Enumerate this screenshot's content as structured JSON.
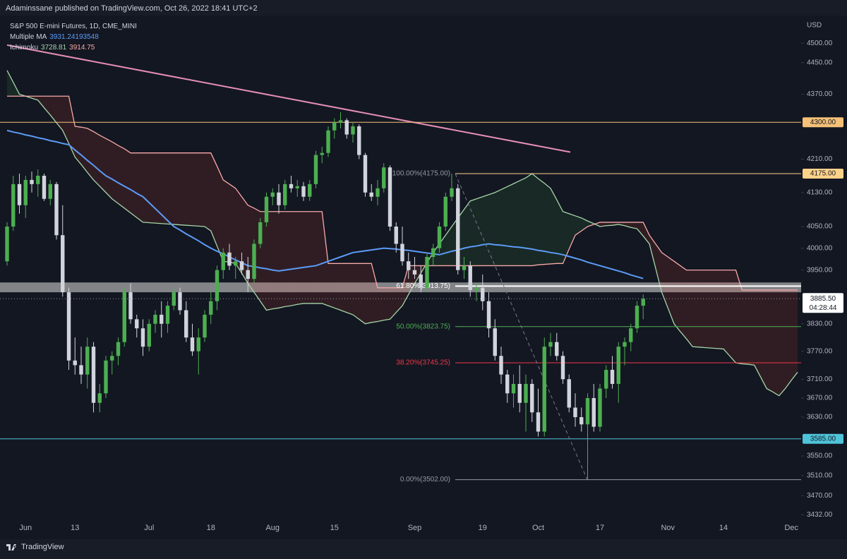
{
  "header": {
    "publisher": "Adaminssane published on TradingView.com, Oct 26, 2022 18:41 UTC+2"
  },
  "footer": {
    "brand": "TradingView"
  },
  "chart_data": {
    "type": "candlestick",
    "title": "S&P 500 E-mini Futures, 1D, CME_MINI",
    "currency": "USD",
    "log": true,
    "grid": false,
    "up_color": "#4caf50",
    "down_color": "#d1d4dc",
    "ylim": [
      3420,
      4572
    ],
    "yticks": [
      {
        "value": 4500,
        "label": "4500.00"
      },
      {
        "value": 4450,
        "label": "4450.00"
      },
      {
        "value": 4370,
        "label": "4370.00"
      },
      {
        "value": 4210,
        "label": "4210.00"
      },
      {
        "value": 4130,
        "label": "4130.00"
      },
      {
        "value": 4050,
        "label": "4050.00"
      },
      {
        "value": 4000,
        "label": "4000.00"
      },
      {
        "value": 3950,
        "label": "3950.00"
      },
      {
        "value": 3830,
        "label": "3830.00"
      },
      {
        "value": 3770,
        "label": "3770.00"
      },
      {
        "value": 3710,
        "label": "3710.00"
      },
      {
        "value": 3670,
        "label": "3670.00"
      },
      {
        "value": 3630,
        "label": "3630.00"
      },
      {
        "value": 3550,
        "label": "3550.00"
      },
      {
        "value": 3510,
        "label": "3510.00"
      },
      {
        "value": 3470,
        "label": "3470.00"
      },
      {
        "value": 3432,
        "label": "3432.00"
      }
    ],
    "categories": [
      null,
      null,
      null,
      "Jun",
      null,
      null,
      null,
      null,
      null,
      null,
      null,
      "13",
      null,
      null,
      null,
      null,
      null,
      null,
      null,
      null,
      null,
      null,
      null,
      "Jul",
      null,
      null,
      null,
      null,
      null,
      null,
      null,
      null,
      null,
      "18",
      null,
      null,
      null,
      null,
      null,
      null,
      null,
      null,
      null,
      "Aug",
      null,
      null,
      null,
      null,
      null,
      null,
      null,
      null,
      null,
      "15",
      null,
      null,
      null,
      null,
      null,
      null,
      null,
      null,
      null,
      null,
      null,
      null,
      "Sep",
      null,
      null,
      null,
      null,
      null,
      null,
      null,
      null,
      null,
      null,
      "19",
      null,
      null,
      null,
      null,
      null,
      null,
      null,
      null,
      "Oct",
      null,
      null,
      null,
      null,
      null,
      null,
      null,
      null,
      null,
      "17",
      null,
      null,
      null,
      null,
      null,
      null,
      null,
      null,
      null,
      null,
      "Nov",
      null,
      null,
      null,
      null,
      null,
      null,
      null,
      null,
      "14",
      null,
      null,
      null,
      null,
      null,
      null,
      null,
      null,
      null,
      null,
      "Dec",
      null
    ],
    "open": [
      3970,
      4050,
      4150,
      4100,
      4160,
      4150,
      4170,
      4115,
      4150,
      4030,
      3900,
      3750,
      3740,
      3720,
      3780,
      3660,
      3680,
      3750,
      3760,
      3790,
      3900,
      3840,
      3820,
      3780,
      3830,
      3850,
      3830,
      3870,
      3900,
      3860,
      3800,
      3770,
      3800,
      3850,
      3880,
      3950,
      3990,
      3960,
      3970,
      3950,
      3930,
      4010,
      4060,
      4120,
      4130,
      4100,
      4150,
      4140,
      4145,
      4120,
      4150,
      4220,
      4225,
      4280,
      4300,
      4305,
      4270,
      4290,
      4220,
      4130,
      4120,
      4140,
      4190,
      4050,
      4010,
      3970,
      3950,
      3940,
      3910,
      3980,
      4000,
      4050,
      4120,
      4140,
      3950,
      3960,
      3905,
      3910,
      3880,
      3820,
      3760,
      3720,
      3680,
      3700,
      3660,
      3700,
      3640,
      3600,
      3780,
      3790,
      3760,
      3710,
      3650,
      3630,
      3615,
      3670,
      3610,
      3690,
      3730,
      3700,
      3780,
      3790,
      3820,
      3870,
      null,
      null,
      null,
      null,
      null,
      null,
      null,
      null,
      null,
      null,
      null,
      null,
      null,
      null,
      null,
      null,
      null,
      null,
      null,
      null,
      null,
      null,
      null,
      null,
      null
    ],
    "high": [
      4060,
      4170,
      4175,
      4170,
      4180,
      4185,
      4175,
      4160,
      4155,
      4100,
      3910,
      3800,
      3780,
      3800,
      3790,
      3700,
      3760,
      3770,
      3800,
      3910,
      3920,
      3850,
      3840,
      3840,
      3860,
      3880,
      3880,
      3910,
      3910,
      3880,
      3830,
      3820,
      3860,
      3900,
      3960,
      4000,
      4010,
      3980,
      3990,
      3980,
      4020,
      4070,
      4130,
      4140,
      4150,
      4160,
      4170,
      4160,
      4155,
      4160,
      4230,
      4240,
      4290,
      4310,
      4325,
      4310,
      4300,
      4295,
      4225,
      4150,
      4160,
      4200,
      4195,
      4060,
      4050,
      3990,
      3980,
      3960,
      3990,
      4010,
      4060,
      4130,
      4175,
      4150,
      3980,
      3970,
      3920,
      3940,
      3900,
      3840,
      3780,
      3730,
      3720,
      3740,
      3720,
      3710,
      3690,
      3800,
      3810,
      3810,
      3770,
      3720,
      3680,
      3650,
      3680,
      3700,
      3700,
      3740,
      3760,
      3790,
      3800,
      3830,
      3880,
      3895,
      null,
      null,
      null,
      null,
      null,
      null,
      null,
      null,
      null,
      null,
      null,
      null,
      null,
      null,
      null,
      null,
      null,
      null,
      null,
      null,
      null,
      null,
      null,
      null,
      null
    ],
    "low": [
      3960,
      4040,
      4080,
      4070,
      4130,
      4120,
      4110,
      4100,
      4020,
      3890,
      3730,
      3720,
      3700,
      3690,
      3640,
      3640,
      3670,
      3720,
      3740,
      3780,
      3830,
      3800,
      3760,
      3770,
      3810,
      3800,
      3810,
      3860,
      3850,
      3790,
      3760,
      3720,
      3790,
      3830,
      3860,
      3930,
      3950,
      3930,
      3940,
      3900,
      3920,
      4000,
      4050,
      4100,
      4080,
      4090,
      4130,
      4120,
      4110,
      4110,
      4140,
      4200,
      4215,
      4260,
      4285,
      4260,
      4250,
      4210,
      4120,
      4110,
      4100,
      4130,
      4040,
      3990,
      3960,
      3930,
      3930,
      3900,
      3900,
      3960,
      3990,
      4040,
      4110,
      3940,
      3930,
      3890,
      3880,
      3860,
      3800,
      3750,
      3700,
      3660,
      3650,
      3640,
      3600,
      3620,
      3590,
      3590,
      3760,
      3750,
      3700,
      3640,
      3610,
      3600,
      3502,
      3600,
      3600,
      3670,
      3690,
      3660,
      3740,
      3770,
      3810,
      3840,
      null,
      null,
      null,
      null,
      null,
      null,
      null,
      null,
      null,
      null,
      null,
      null,
      null,
      null,
      null,
      null,
      null,
      null,
      null,
      null,
      null,
      null,
      null,
      null,
      null
    ],
    "close": [
      4050,
      4150,
      4100,
      4160,
      4150,
      4170,
      4115,
      4150,
      4030,
      3900,
      3750,
      3740,
      3720,
      3780,
      3660,
      3680,
      3750,
      3760,
      3790,
      3900,
      3840,
      3820,
      3780,
      3830,
      3850,
      3830,
      3870,
      3900,
      3860,
      3800,
      3770,
      3800,
      3850,
      3880,
      3950,
      3990,
      3960,
      3970,
      3950,
      3930,
      4010,
      4060,
      4120,
      4130,
      4100,
      4150,
      4140,
      4145,
      4120,
      4150,
      4220,
      4225,
      4280,
      4300,
      4305,
      4270,
      4290,
      4220,
      4130,
      4120,
      4140,
      4190,
      4050,
      4010,
      3970,
      3950,
      3940,
      3910,
      3980,
      4000,
      4050,
      4120,
      4140,
      3950,
      3960,
      3905,
      3910,
      3880,
      3820,
      3760,
      3720,
      3680,
      3700,
      3660,
      3700,
      3640,
      3600,
      3780,
      3790,
      3760,
      3710,
      3650,
      3630,
      3615,
      3670,
      3610,
      3690,
      3730,
      3700,
      3780,
      3790,
      3820,
      3870,
      3885.5,
      null,
      null,
      null,
      null,
      null,
      null,
      null,
      null,
      null,
      null,
      null,
      null,
      null,
      null,
      null,
      null,
      null,
      null,
      null,
      null,
      null,
      null,
      null,
      null,
      null
    ],
    "ma": {
      "name": "Multiple MA",
      "last": 3931.24193548,
      "color": "#5b9cf6",
      "values": [
        4280,
        4276,
        4273,
        4269,
        4266,
        4262,
        4259,
        4255,
        4252,
        4248,
        4245,
        4232,
        4220,
        4207,
        4195,
        4182,
        4170,
        4162,
        4153,
        4145,
        4137,
        4128,
        4120,
        4106,
        4092,
        4078,
        4064,
        4050,
        4042,
        4033,
        4025,
        4017,
        4008,
        4000,
        3993,
        3987,
        3980,
        3973,
        3967,
        3960,
        3958,
        3955,
        3953,
        3950,
        3948,
        3950,
        3952,
        3954,
        3956,
        3958,
        3960,
        3965,
        3970,
        3975,
        3980,
        3985,
        3990,
        3992,
        3994,
        3996,
        3998,
        4000,
        3999,
        3998,
        3996,
        3995,
        3993,
        3991,
        3989,
        3987,
        3985,
        3989,
        3993,
        3996,
        4000,
        4003,
        4005,
        4008,
        4010,
        4008,
        4007,
        4005,
        4003,
        4002,
        4000,
        3998,
        3995,
        3993,
        3990,
        3988,
        3985,
        3981,
        3977,
        3973,
        3968,
        3964,
        3960,
        3956,
        3952,
        3948,
        3944,
        3939,
        3935,
        3931,
        null,
        null,
        null,
        null,
        null,
        null,
        null,
        null,
        null,
        null,
        null,
        null,
        null,
        null,
        null,
        null,
        null,
        null,
        null,
        null,
        null,
        null,
        null,
        null,
        null
      ]
    },
    "ichimoku": {
      "name": "Ichimoku",
      "cloud_up_color": "rgba(67,160,71,0.13)",
      "cloud_down_color": "rgba(244,67,54,0.13)",
      "lead1": {
        "last": 3728.81,
        "color": "#a5d6a7",
        "values": [
          4430,
          4400,
          4370,
          4365,
          4360,
          4355,
          4336,
          4318,
          4299,
          4280,
          4248,
          4215,
          4197,
          4178,
          4160,
          4145,
          4130,
          4115,
          4104,
          4093,
          4082,
          4071,
          4060,
          4059,
          4058,
          4057,
          4056,
          4055,
          4054,
          4053,
          4052,
          4051,
          4050,
          4040,
          4005,
          3970,
          3968,
          3965,
          3943,
          3920,
          3900,
          3880,
          3860,
          3863,
          3865,
          3868,
          3870,
          3873,
          3875,
          3875,
          3875,
          3875,
          3870,
          3865,
          3860,
          3855,
          3850,
          3840,
          3830,
          3833,
          3835,
          3838,
          3840,
          3855,
          3870,
          3895,
          3920,
          3943,
          3967,
          3990,
          4010,
          4030,
          4050,
          4070,
          4090,
          4110,
          4115,
          4120,
          4125,
          4130,
          4137,
          4144,
          4151,
          4158,
          4165,
          4175,
          4163,
          4152,
          4140,
          4113,
          4085,
          4080,
          4075,
          4070,
          4063,
          4057,
          4050,
          4052,
          4053,
          4055,
          4052,
          4048,
          4045,
          4028,
          4010,
          3955,
          3900,
          3865,
          3830,
          3813,
          3797,
          3780,
          3779,
          3778,
          3777,
          3776,
          3775,
          3760,
          3745,
          3743,
          3742,
          3740,
          3715,
          3690,
          3683,
          3675,
          3690,
          3708,
          3725
        ]
      },
      "lead2": {
        "last": 3914.75,
        "color": "#f7a9a7",
        "values": [
          4365,
          4365,
          4365,
          4365,
          4365,
          4365,
          4365,
          4365,
          4365,
          4365,
          4365,
          4290,
          4288,
          4285,
          4277,
          4268,
          4260,
          4252,
          4243,
          4235,
          4225,
          4225,
          4225,
          4225,
          4225,
          4225,
          4225,
          4225,
          4225,
          4225,
          4225,
          4225,
          4225,
          4225,
          4193,
          4160,
          4150,
          4140,
          4120,
          4100,
          4093,
          4085,
          4085,
          4085,
          4085,
          4085,
          4085,
          4085,
          4085,
          4085,
          4085,
          4085,
          3965,
          3965,
          3965,
          3965,
          3965,
          3965,
          3965,
          3965,
          3910,
          3910,
          3910,
          3910,
          3910,
          3960,
          3960,
          3960,
          3960,
          3960,
          3960,
          3960,
          3960,
          3960,
          3960,
          3960,
          3960,
          3960,
          3960,
          3960,
          3960,
          3960,
          3960,
          3960,
          3960,
          3960,
          3962,
          3963,
          3964,
          3965,
          3965,
          3998,
          4030,
          4040,
          4050,
          4055,
          4060,
          4060,
          4060,
          4060,
          4060,
          4060,
          4060,
          4060,
          4030,
          4010,
          3990,
          3980,
          3970,
          3960,
          3950,
          3950,
          3950,
          3950,
          3950,
          3950,
          3950,
          3950,
          3950,
          3905,
          3905,
          3905,
          3905,
          3905,
          3905,
          3905,
          3905,
          3905,
          3905
        ]
      }
    },
    "trendline": {
      "color": "#e58fb4",
      "values": [
        4495,
        4227
      ]
    },
    "zone": {
      "color": "rgba(205,205,205,0.6)",
      "values": [
        3900,
        3922
      ]
    },
    "levels": [
      {
        "value": 4300,
        "label": "4300.00",
        "color": "#f6c177"
      },
      {
        "value": 3585,
        "label": "3585.00",
        "color": "#4fc3d9"
      }
    ],
    "fib_levels": [
      {
        "value": 4175,
        "label": "100.00%(4175.00)",
        "color": "#ffd28a",
        "label_color": "#9598a1",
        "badge": "4175.00"
      },
      {
        "value": 3913.75,
        "label": "61.80%(3913.75)",
        "color": "#ffffff",
        "label_color": "#ffffff"
      },
      {
        "value": 3823.75,
        "label": "50.00%(3823.75)",
        "color": "#4caf50",
        "label_color": "#4caf50"
      },
      {
        "value": 3745.25,
        "label": "38.20%(3745.25)",
        "color": "#f23645",
        "label_color": "#f23645"
      },
      {
        "value": 3502,
        "label": "0.00%(3502.00)",
        "color": "#9598a1",
        "label_color": "#9598a1"
      }
    ],
    "price_label": {
      "value": 3885.5,
      "label": "3885.50",
      "countdown": "04:28:44"
    }
  }
}
